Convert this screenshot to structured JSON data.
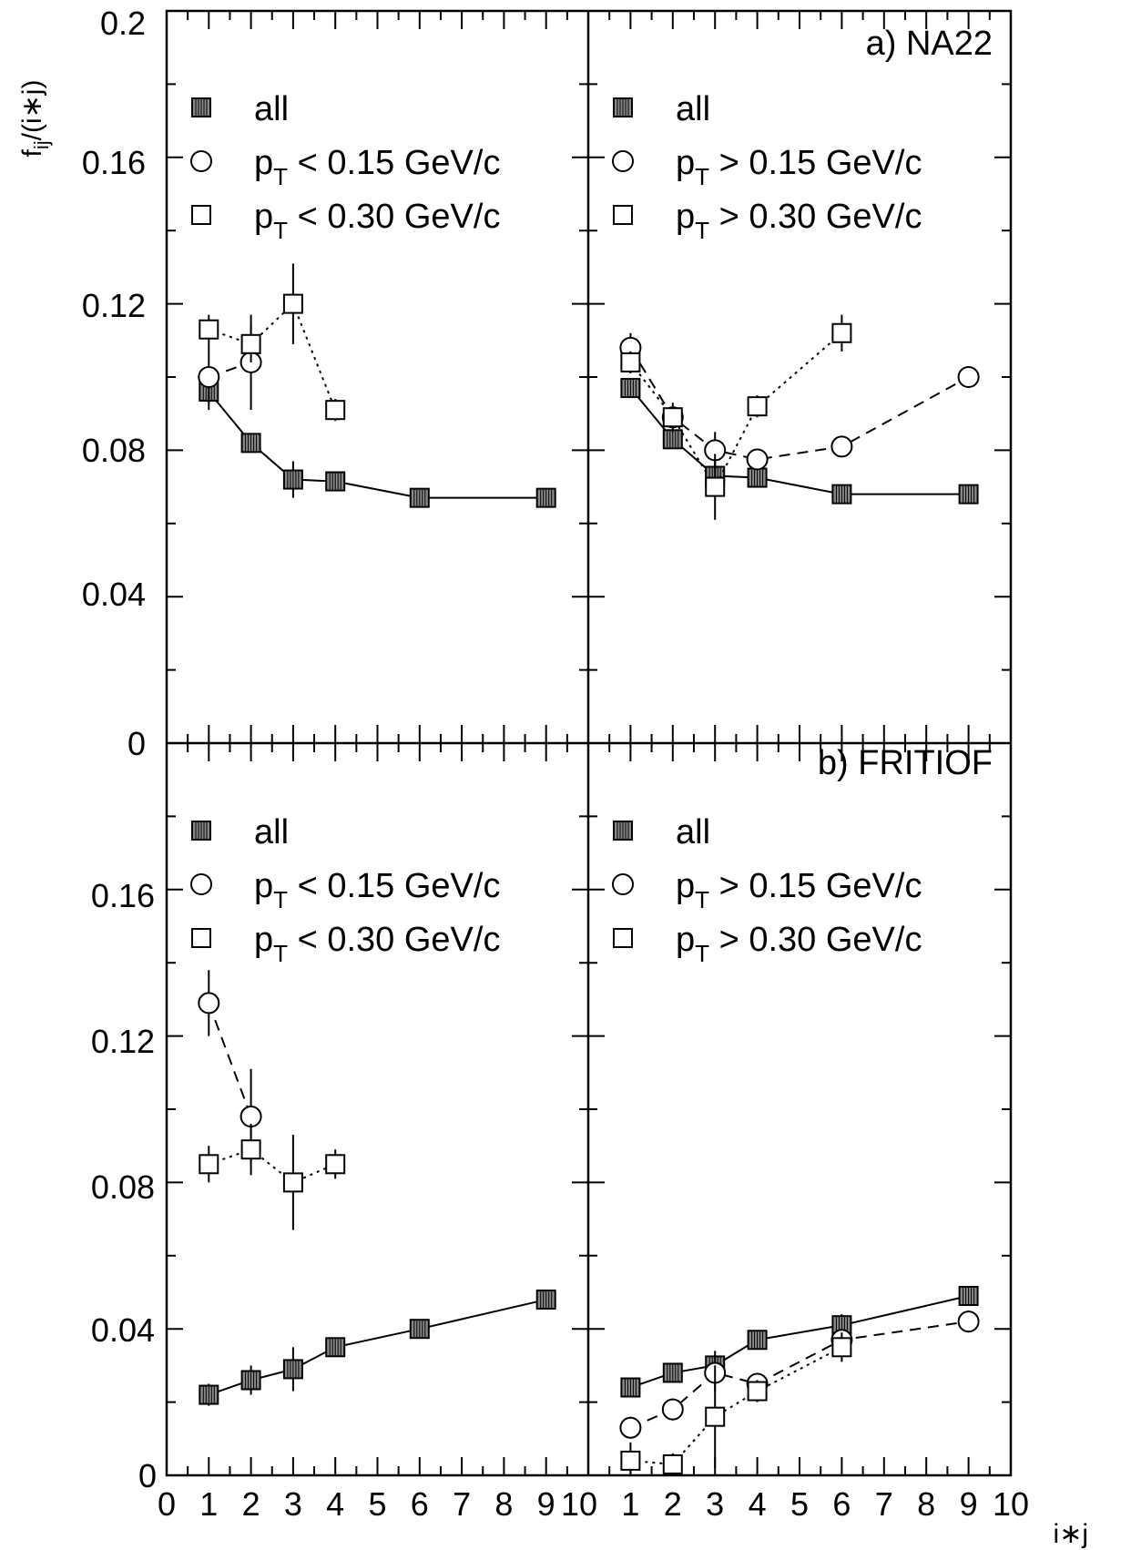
{
  "colors": {
    "ink": "#000000",
    "marker_fill": "#888888",
    "background": "#ffffff"
  },
  "y_tick_labels": [
    "0",
    "0.04",
    "0.08",
    "0.12",
    "0.16",
    "0.2"
  ],
  "x_tick_labels": [
    "0",
    "1",
    "2",
    "3",
    "4",
    "5",
    "6",
    "7",
    "8",
    "9",
    "10"
  ],
  "x_axis_title": "i∗j",
  "y_axis_title": {
    "main": "f",
    "sub": "ij",
    "tail": "/(i∗j)"
  },
  "chart_data": [
    {
      "type": "scatter",
      "row": "a",
      "title": "a) NA22",
      "xlim": [
        0,
        10
      ],
      "ylim": [
        0,
        0.2
      ],
      "xlabel": "i∗j",
      "ylabel": "f_ij/(i∗j)",
      "left": {
        "legend": [
          {
            "marker": "filled-square",
            "prefix": "",
            "text": "all"
          },
          {
            "marker": "open-circle",
            "prefix": "p",
            "sub": "T",
            "text": " < 0.15 GeV/c"
          },
          {
            "marker": "open-square",
            "prefix": "p",
            "sub": "T",
            "text": " < 0.30 GeV/c"
          }
        ],
        "series": [
          {
            "name": "all",
            "marker": "filled-square",
            "line": "solid",
            "x": [
              1,
              2,
              3,
              4,
              6,
              9
            ],
            "y": [
              0.096,
              0.082,
              0.072,
              0.0715,
              0.067,
              0.067
            ],
            "err": [
              0.003,
              0.002,
              0.005,
              0.002,
              0.002,
              0.002
            ]
          },
          {
            "name": "pT < 0.15 GeV/c",
            "marker": "open-circle",
            "line": "dashed",
            "x": [
              1,
              2
            ],
            "y": [
              0.1,
              0.104
            ],
            "err": [
              0.009,
              0.013
            ]
          },
          {
            "name": "pT < 0.30 GeV/c",
            "marker": "open-square",
            "line": "dotted",
            "x": [
              1,
              2,
              3,
              4
            ],
            "y": [
              0.113,
              0.109,
              0.12,
              0.091
            ],
            "err": [
              0.004,
              0.005,
              0.011,
              0.003
            ]
          }
        ]
      },
      "right": {
        "legend": [
          {
            "marker": "filled-square",
            "prefix": "",
            "text": "all"
          },
          {
            "marker": "open-circle",
            "prefix": "p",
            "sub": "T",
            "text": " > 0.15 GeV/c"
          },
          {
            "marker": "open-square",
            "prefix": "p",
            "sub": "T",
            "text": " > 0.30 GeV/c"
          }
        ],
        "series": [
          {
            "name": "all",
            "marker": "filled-square",
            "line": "solid",
            "x": [
              1,
              2,
              3,
              4,
              6,
              9
            ],
            "y": [
              0.097,
              0.083,
              0.073,
              0.0725,
              0.068,
              0.068
            ],
            "err": [
              0.002,
              0.002,
              0.003,
              0.002,
              0.002,
              0.002
            ]
          },
          {
            "name": "pT > 0.15 GeV/c",
            "marker": "open-circle",
            "line": "dashed",
            "x": [
              1,
              2,
              3,
              4,
              6,
              9
            ],
            "y": [
              0.108,
              0.089,
              0.08,
              0.0775,
              0.081,
              0.1
            ],
            "err": [
              0.004,
              0.003,
              0.005,
              0.002,
              0.002,
              0.002
            ]
          },
          {
            "name": "pT > 0.30 GeV/c",
            "marker": "open-square",
            "line": "dotted",
            "x": [
              1,
              2,
              3,
              4,
              6
            ],
            "y": [
              0.104,
              0.089,
              0.07,
              0.092,
              0.112
            ],
            "err": [
              0.003,
              0.004,
              0.009,
              0.003,
              0.005
            ]
          }
        ]
      }
    },
    {
      "type": "scatter",
      "row": "b",
      "title": "b) FRITIOF",
      "xlim": [
        0,
        10
      ],
      "ylim": [
        0,
        0.2
      ],
      "xlabel": "i∗j",
      "ylabel": "f_ij/(i∗j)",
      "left": {
        "legend": [
          {
            "marker": "filled-square",
            "prefix": "",
            "text": "all"
          },
          {
            "marker": "open-circle",
            "prefix": "p",
            "sub": "T",
            "text": " < 0.15 GeV/c"
          },
          {
            "marker": "open-square",
            "prefix": "p",
            "sub": "T",
            "text": " < 0.30 GeV/c"
          }
        ],
        "series": [
          {
            "name": "all",
            "marker": "filled-square",
            "line": "solid",
            "x": [
              1,
              2,
              3,
              4,
              6,
              9
            ],
            "y": [
              0.022,
              0.026,
              0.029,
              0.035,
              0.04,
              0.048
            ],
            "err": [
              0.003,
              0.004,
              0.006,
              0.002,
              0.002,
              0.002
            ]
          },
          {
            "name": "pT < 0.15 GeV/c",
            "marker": "open-circle",
            "line": "dashed",
            "x": [
              1,
              2
            ],
            "y": [
              0.129,
              0.098
            ],
            "err": [
              0.009,
              0.013
            ]
          },
          {
            "name": "pT < 0.30 GeV/c",
            "marker": "open-square",
            "line": "dotted",
            "x": [
              1,
              2,
              3,
              4
            ],
            "y": [
              0.085,
              0.089,
              0.08,
              0.085
            ],
            "err": [
              0.005,
              0.007,
              0.013,
              0.004
            ]
          }
        ]
      },
      "right": {
        "legend": [
          {
            "marker": "filled-square",
            "prefix": "",
            "text": "all"
          },
          {
            "marker": "open-circle",
            "prefix": "p",
            "sub": "T",
            "text": " > 0.15 GeV/c"
          },
          {
            "marker": "open-square",
            "prefix": "p",
            "sub": "T",
            "text": " > 0.30 GeV/c"
          }
        ],
        "series": [
          {
            "name": "all",
            "marker": "filled-square",
            "line": "solid",
            "x": [
              1,
              2,
              3,
              4,
              6,
              9
            ],
            "y": [
              0.024,
              0.028,
              0.03,
              0.037,
              0.041,
              0.049
            ],
            "err": [
              0.002,
              0.002,
              0.004,
              0.002,
              0.003,
              0.002
            ]
          },
          {
            "name": "pT > 0.15 GeV/c",
            "marker": "open-circle",
            "line": "dashed",
            "x": [
              1,
              2,
              3,
              4,
              6,
              9
            ],
            "y": [
              0.013,
              0.018,
              0.028,
              0.025,
              0.037,
              0.042
            ],
            "err": [
              0.003,
              0.003,
              0.005,
              0.002,
              0.003,
              0.003
            ]
          },
          {
            "name": "pT > 0.30 GeV/c",
            "marker": "open-square",
            "line": "dotted",
            "x": [
              1,
              2,
              3,
              4,
              6
            ],
            "y": [
              0.004,
              0.003,
              0.016,
              0.023,
              0.035
            ],
            "err": [
              0.005,
              0.003,
              0.014,
              0.003,
              0.004
            ]
          }
        ]
      }
    }
  ]
}
